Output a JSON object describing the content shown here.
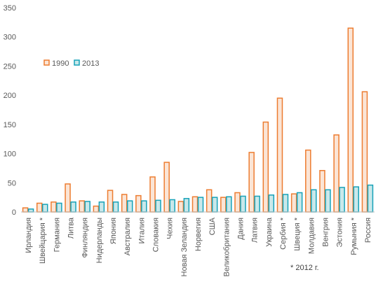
{
  "chart_data": {
    "type": "bar",
    "categories": [
      "Ирландия",
      "Швейцария *",
      "Германия",
      "Литва",
      "Финляндия",
      "Нидерланды",
      "Япония",
      "Австралия",
      "Италия",
      "Словакия",
      "Чехия",
      "Новая Зеландия",
      "Норвегия",
      "США",
      "Великобритания",
      "Дания",
      "Латвия",
      "Украина",
      "Сербия *",
      "Швеция *",
      "Молдавия",
      "Венгрия",
      "Эстония",
      "Румыния *",
      "Россия"
    ],
    "series": [
      {
        "name": "1990",
        "values": [
          7,
          15,
          17,
          48,
          19,
          10,
          37,
          30,
          28,
          60,
          85,
          18,
          26,
          38,
          25,
          33,
          102,
          154,
          195,
          31,
          106,
          71,
          132,
          315,
          206
        ]
      },
      {
        "name": "2013",
        "values": [
          5,
          13,
          15,
          17,
          18,
          17,
          17,
          19,
          19,
          20,
          21,
          23,
          25,
          25,
          26,
          27,
          27,
          29,
          30,
          33,
          38,
          38,
          42,
          43,
          46
        ]
      }
    ],
    "ylim": [
      0,
      350
    ],
    "yticks": [
      0,
      50,
      100,
      150,
      200,
      250,
      300,
      350
    ],
    "legend_position": "upper-left inside plot",
    "grid": false,
    "colors": {
      "1990_fill": "#FBE5D6",
      "1990_stroke": "#ED7D31",
      "2013_fill": "#C9E8EA",
      "2013_stroke": "#17A2B8",
      "axis": "#BFBFBF",
      "text": "#595959"
    }
  },
  "footnote": "* 2012 г."
}
